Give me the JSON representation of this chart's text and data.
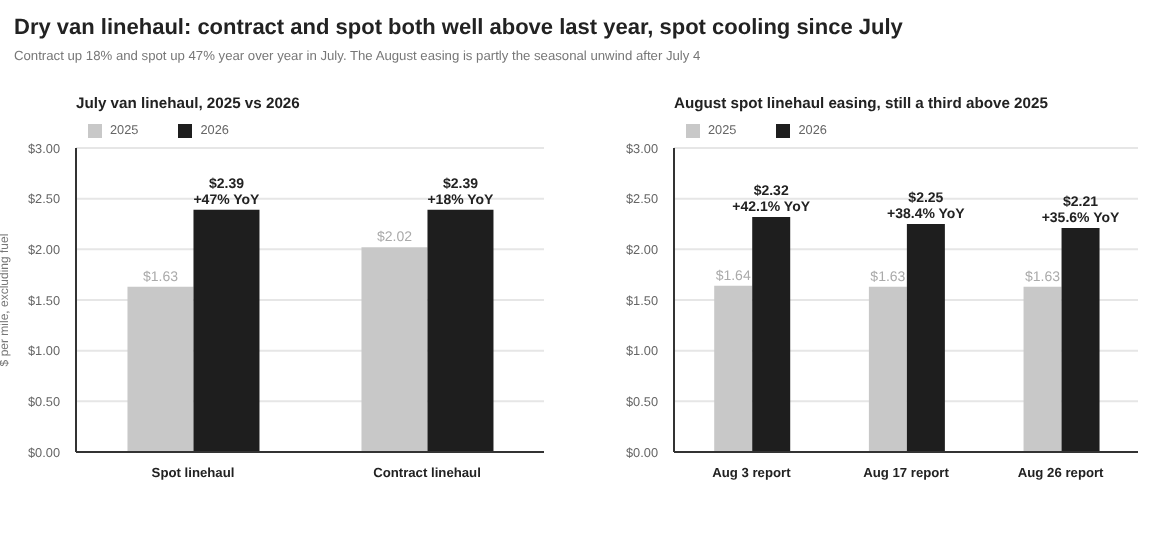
{
  "chart_data": [
    {
      "type": "other",
      "title": "Dry van linehaul: contract and spot both well above last year, spot cooling since July",
      "subtitle": "Contract up 18% and spot up 47% year over year in July. The August easing is partly the seasonal unwind after July 4"
    },
    {
      "type": "bar",
      "title": "July van linehaul, 2025 vs 2026",
      "ylabel": "$ per mile, excluding fuel",
      "categories": [
        "Spot linehaul",
        "Contract linehaul"
      ],
      "series": [
        {
          "name": "2025",
          "color": "#c8c8c8",
          "values": [
            1.63,
            2.02
          ],
          "value_labels": [
            "$1.63",
            "$2.02"
          ]
        },
        {
          "name": "2026",
          "color": "#1e1e1e",
          "values": [
            2.39,
            2.39
          ],
          "value_labels": [
            "$2.39\n+47% YoY",
            "$2.39\n+18% YoY"
          ]
        }
      ],
      "ylim": [
        0,
        3
      ],
      "yticks": [
        {
          "value": 0,
          "label": "$0.00"
        },
        {
          "value": 0.5,
          "label": "$0.50"
        },
        {
          "value": 1,
          "label": "$1.00"
        },
        {
          "value": 1.5,
          "label": "$1.50"
        },
        {
          "value": 2,
          "label": "$2.00"
        },
        {
          "value": 2.5,
          "label": "$2.50"
        },
        {
          "value": 3,
          "label": "$3.00"
        }
      ],
      "grid": "y",
      "legend": "top left"
    },
    {
      "type": "bar",
      "title": "August spot linehaul easing, still a third above 2025",
      "categories": [
        "Aug 3 report",
        "Aug 17 report",
        "Aug 26 report"
      ],
      "series": [
        {
          "name": "2025",
          "color": "#c8c8c8",
          "values": [
            1.64,
            1.63,
            1.63
          ],
          "value_labels": [
            "$1.64",
            "$1.63",
            "$1.63"
          ]
        },
        {
          "name": "2026",
          "color": "#1e1e1e",
          "values": [
            2.32,
            2.25,
            2.21
          ],
          "value_labels": [
            "$2.32\n+42.1% YoY",
            "$2.25\n+38.4% YoY",
            "$2.21\n+35.6% YoY"
          ]
        }
      ],
      "ylim": [
        0,
        3
      ],
      "yticks": [
        {
          "value": 0,
          "label": "$0.00"
        },
        {
          "value": 0.5,
          "label": "$0.50"
        },
        {
          "value": 1,
          "label": "$1.00"
        },
        {
          "value": 1.5,
          "label": "$1.50"
        },
        {
          "value": 2,
          "label": "$2.00"
        },
        {
          "value": 2.5,
          "label": "$2.50"
        },
        {
          "value": 3,
          "label": "$3.00"
        }
      ],
      "grid": "y",
      "legend": "top left"
    }
  ]
}
